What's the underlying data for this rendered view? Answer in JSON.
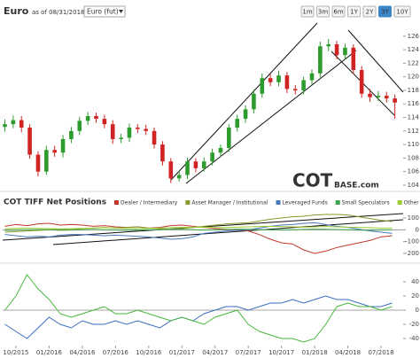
{
  "header": {
    "title": "Euro",
    "as_of": "as of 08/31/2018",
    "instrument": "Euro (fut)",
    "ranges": [
      "1m",
      "3m",
      "6m",
      "1Y",
      "2Y",
      "3Y",
      "10Y"
    ],
    "active_range": "3Y"
  },
  "watermark": [
    "COT",
    "BASE.com"
  ],
  "chart_data": [
    {
      "type": "candlestick",
      "up_color": "#2e9b2e",
      "down_color": "#d02424",
      "x": [
        -1,
        -0.25,
        0.5,
        1.25,
        2,
        2.75,
        3.5,
        4.25,
        5,
        5.75,
        6.5,
        7.25,
        8,
        8.75,
        9.5,
        10.25,
        11,
        11.75,
        12.5,
        13.25,
        14,
        14.75,
        15.5,
        16.25,
        17,
        17.75,
        18.5,
        19.25,
        20,
        20.75,
        21.5,
        22.25,
        23,
        23.75,
        24.5,
        25.25,
        26,
        26.75,
        27.5,
        28.25,
        29,
        29.75,
        30.5,
        31.25,
        32,
        32.75,
        33.5,
        34.25
      ],
      "open": [
        112.6,
        113.0,
        113.6,
        112.5,
        108.5,
        106.0,
        109.2,
        108.8,
        110.8,
        112.0,
        113.5,
        114.2,
        113.8,
        113.0,
        110.8,
        111.0,
        112.5,
        112.3,
        112.0,
        110.0,
        107.5,
        105.0,
        105.5,
        107.5,
        106.5,
        107.5,
        108.8,
        109.5,
        112.5,
        113.8,
        115.2,
        117.5,
        119.8,
        119.2,
        120.2,
        118.2,
        118.0,
        119.5,
        120.5,
        124.5,
        124.8,
        123.2,
        124.3,
        121.0,
        117.5,
        117.0,
        117.2,
        116.8
      ],
      "high": [
        113.7,
        114.3,
        114.2,
        113.0,
        109.0,
        109.8,
        109.8,
        111.4,
        112.6,
        114.1,
        114.8,
        114.7,
        114.4,
        113.6,
        111.6,
        113.1,
        113.0,
        112.9,
        112.5,
        110.5,
        108.0,
        106.1,
        108.1,
        108.0,
        108.1,
        109.4,
        110.0,
        113.0,
        114.4,
        115.8,
        118.1,
        120.5,
        120.4,
        120.9,
        120.7,
        118.8,
        120.0,
        121.1,
        125.2,
        125.6,
        125.3,
        124.9,
        124.8,
        121.6,
        118.2,
        117.9,
        117.8,
        117.4
      ],
      "low": [
        111.9,
        112.4,
        111.8,
        107.9,
        105.3,
        105.5,
        108.2,
        108.1,
        110.2,
        111.4,
        112.9,
        113.2,
        112.4,
        110.1,
        110.2,
        110.4,
        111.7,
        111.4,
        109.4,
        106.9,
        104.3,
        104.5,
        104.9,
        105.9,
        106.0,
        106.9,
        108.2,
        108.9,
        111.9,
        113.2,
        114.6,
        116.9,
        118.6,
        118.6,
        117.6,
        117.4,
        117.4,
        118.9,
        119.9,
        123.8,
        122.6,
        122.6,
        120.4,
        116.9,
        116.3,
        116.4,
        116.2,
        113.8
      ],
      "close": [
        113.0,
        113.6,
        112.5,
        108.5,
        106.0,
        109.2,
        108.8,
        110.8,
        112.0,
        113.5,
        114.2,
        113.8,
        113.0,
        110.8,
        111.0,
        112.5,
        112.3,
        112.0,
        110.0,
        107.5,
        105.0,
        105.5,
        107.5,
        106.5,
        107.5,
        108.8,
        109.5,
        112.5,
        113.8,
        115.2,
        117.5,
        119.8,
        119.2,
        120.2,
        118.2,
        118.0,
        119.5,
        120.5,
        124.5,
        124.8,
        123.2,
        124.3,
        121.0,
        117.5,
        117.0,
        117.2,
        116.8,
        116.2
      ],
      "xlim": [
        -1.2,
        35
      ],
      "ylim": [
        103.6,
        128.2
      ],
      "yticks": [
        104,
        106,
        108,
        110,
        112,
        114,
        116,
        118,
        120,
        122,
        124,
        126
      ]
    },
    {
      "type": "line",
      "title": "COT TIFF Net Positions",
      "x": [
        -1,
        0,
        1,
        2,
        3,
        4,
        5,
        6,
        7,
        8,
        9,
        10,
        11,
        12,
        13,
        14,
        15,
        16,
        17,
        18,
        19,
        20,
        21,
        22,
        23,
        24,
        25,
        26,
        27,
        28,
        29,
        30,
        31,
        32,
        33,
        34
      ],
      "series": [
        {
          "name": "Dealer / Intermediary",
          "color": "#c0392b",
          "values": [
            30,
            45,
            35,
            50,
            55,
            40,
            45,
            40,
            30,
            35,
            25,
            20,
            25,
            15,
            20,
            35,
            40,
            30,
            20,
            10,
            5,
            0,
            -10,
            -40,
            -80,
            -110,
            -120,
            -170,
            -200,
            -180,
            -150,
            -130,
            -110,
            -90,
            -60,
            -50
          ]
        },
        {
          "name": "Asset Manager / Institutional",
          "color": "#8a9a2a",
          "values": [
            -20,
            -15,
            -10,
            -5,
            0,
            5,
            0,
            10,
            15,
            20,
            15,
            20,
            25,
            15,
            10,
            5,
            10,
            20,
            30,
            40,
            50,
            55,
            60,
            75,
            90,
            100,
            110,
            115,
            125,
            130,
            130,
            125,
            110,
            95,
            80,
            70
          ]
        },
        {
          "name": "Leveraged Funds",
          "color": "#4a78c0",
          "values": [
            -40,
            -50,
            -60,
            -55,
            -60,
            -45,
            -40,
            -40,
            -45,
            -50,
            -45,
            -50,
            -55,
            -60,
            -70,
            -80,
            -75,
            -60,
            -30,
            -20,
            -10,
            -5,
            0,
            15,
            30,
            40,
            45,
            55,
            60,
            45,
            30,
            20,
            5,
            -10,
            -20,
            -30
          ]
        },
        {
          "name": "Small Speculators",
          "color": "#3fa34d",
          "values": [
            -5,
            -3,
            0,
            2,
            0,
            -4,
            -2,
            0,
            3,
            0,
            -2,
            -4,
            -3,
            0,
            2,
            4,
            3,
            0,
            -2,
            0,
            3,
            5,
            4,
            2,
            0,
            -2,
            0,
            3,
            5,
            4,
            2,
            0,
            -3,
            -4,
            -2,
            0
          ]
        },
        {
          "name": "Other Reportables",
          "color": "#9acd32",
          "values": [
            10,
            12,
            15,
            12,
            10,
            8,
            10,
            12,
            15,
            18,
            15,
            12,
            10,
            12,
            15,
            18,
            20,
            22,
            20,
            18,
            20,
            22,
            25,
            28,
            30,
            28,
            25,
            22,
            25,
            28,
            25,
            22,
            20,
            18,
            15,
            15
          ]
        }
      ],
      "xlim": [
        -1.2,
        35
      ],
      "ylim": [
        -260,
        160
      ],
      "yticks": [
        100,
        0,
        -100,
        -200
      ]
    },
    {
      "type": "line",
      "x": [
        -1,
        0,
        1,
        2,
        3,
        4,
        5,
        6,
        7,
        8,
        9,
        10,
        11,
        12,
        13,
        14,
        15,
        16,
        17,
        18,
        19,
        20,
        21,
        22,
        23,
        24,
        25,
        26,
        27,
        28,
        29,
        30,
        31,
        32,
        33,
        34
      ],
      "series": [
        {
          "color": "#3b6cc2",
          "values": [
            -20,
            -30,
            -40,
            -25,
            -10,
            -20,
            -25,
            -15,
            -20,
            -20,
            -15,
            -20,
            -15,
            -20,
            -25,
            -15,
            -10,
            -15,
            -5,
            0,
            5,
            5,
            0,
            5,
            10,
            10,
            15,
            10,
            15,
            20,
            15,
            15,
            10,
            5,
            5,
            10
          ]
        },
        {
          "color": "#45b83a",
          "values": [
            0,
            20,
            50,
            30,
            15,
            -5,
            -10,
            -5,
            0,
            5,
            -5,
            -5,
            0,
            -5,
            -10,
            -15,
            -10,
            -15,
            -20,
            -10,
            -5,
            0,
            -20,
            -30,
            -35,
            -40,
            -40,
            -45,
            -40,
            -20,
            5,
            10,
            5,
            5,
            0,
            5
          ]
        }
      ],
      "xlim": [
        -1.2,
        35
      ],
      "ylim": [
        -50,
        60
      ],
      "yticks": [
        40,
        20,
        0,
        -20,
        -40
      ],
      "xticks": [
        {
          "value": 0,
          "label": "10/2015"
        },
        {
          "value": 3,
          "label": "01/2016"
        },
        {
          "value": 6,
          "label": "04/2016"
        },
        {
          "value": 9,
          "label": "07/2016"
        },
        {
          "value": 12,
          "label": "10/2016"
        },
        {
          "value": 15,
          "label": "01/2017"
        },
        {
          "value": 18,
          "label": "04/2017"
        },
        {
          "value": 21,
          "label": "07/2017"
        },
        {
          "value": 24,
          "label": "10/2017"
        },
        {
          "value": 27,
          "label": "01/2018"
        },
        {
          "value": 30,
          "label": "04/2018"
        },
        {
          "value": 33,
          "label": "07/2018"
        }
      ]
    }
  ]
}
